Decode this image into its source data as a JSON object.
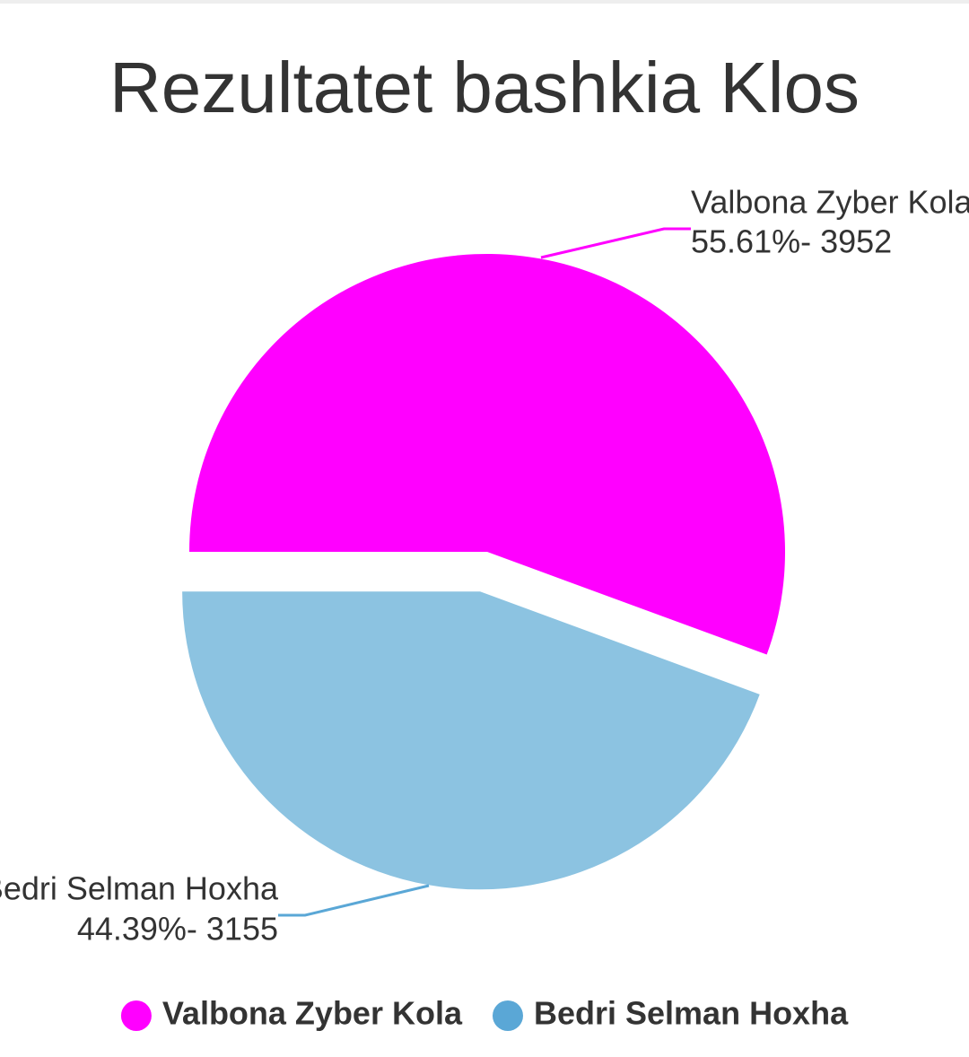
{
  "chart_data": {
    "type": "pie",
    "title": "Rezultatet bashkia Klos",
    "categories": [
      "Valbona Zyber Kola",
      "Bedri Selman Hoxha"
    ],
    "values": [
      3952,
      3155
    ],
    "value_labels": [
      "55.61%- 3952",
      "44.39%- 3155"
    ],
    "colors": [
      "#ff00ff",
      "#8cc3e1"
    ],
    "legend_colors": [
      "#ff00ff",
      "#5aa7d6"
    ],
    "legend": "bottom"
  }
}
